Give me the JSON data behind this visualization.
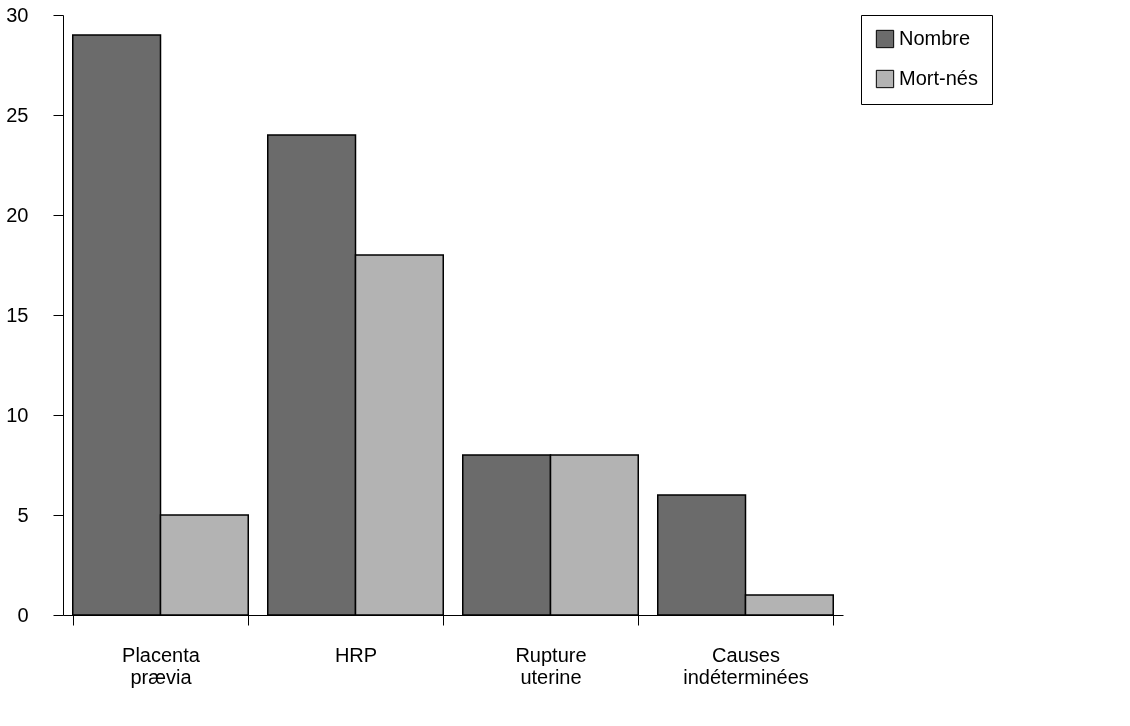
{
  "chart_data": {
    "type": "bar",
    "categories": [
      "Placenta prævia",
      "HRP",
      "Rupture uterine",
      "Causes indéterminées"
    ],
    "series": [
      {
        "name": "Nombre",
        "color": "#6b6b6b",
        "values": [
          29,
          24,
          8,
          6
        ]
      },
      {
        "name": "Mort-nés",
        "color": "#b3b3b3",
        "values": [
          5,
          18,
          8,
          1
        ]
      }
    ],
    "ylim": [
      0,
      30
    ],
    "yticks": [
      0,
      5,
      10,
      15,
      20,
      25,
      30
    ],
    "grid": false,
    "legend": "right"
  }
}
